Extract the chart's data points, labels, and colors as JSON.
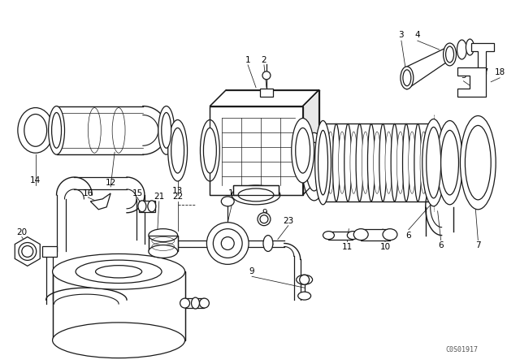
{
  "bg_color": "#ffffff",
  "line_color": "#1a1a1a",
  "figsize": [
    6.4,
    4.48
  ],
  "dpi": 100,
  "watermark": "C0S01917",
  "lw": 0.9
}
